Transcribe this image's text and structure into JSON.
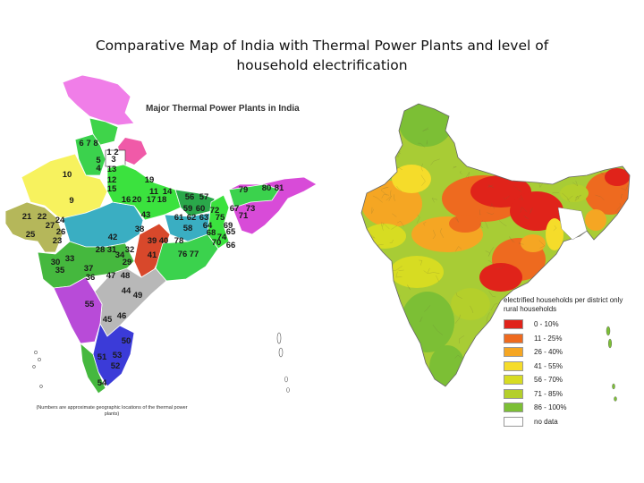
{
  "title_line1": "Comparative Map of India with Thermal Power Plants and level of",
  "title_line2": "household electrification",
  "left_map": {
    "heading": "Major Thermal Power Plants in India",
    "footnote": "(Numbers are approximate geographic locations of the thermal power plants)",
    "plant_labels": [
      "6",
      "7",
      "8",
      "1",
      "2",
      "3",
      "5",
      "4",
      "13",
      "12",
      "15",
      "19",
      "16",
      "20",
      "17",
      "18",
      "14",
      "11",
      "10",
      "9",
      "56",
      "57",
      "59",
      "60",
      "61",
      "62",
      "63",
      "64",
      "65",
      "66",
      "67",
      "68",
      "69",
      "70",
      "71",
      "72",
      "73",
      "74",
      "75",
      "76",
      "77",
      "78",
      "79",
      "80",
      "81",
      "21",
      "22",
      "23",
      "24",
      "25",
      "26",
      "27",
      "28",
      "29",
      "30",
      "31",
      "32",
      "33",
      "34",
      "35",
      "36",
      "37",
      "38",
      "39",
      "40",
      "41",
      "42",
      "43",
      "44",
      "45",
      "46",
      "47",
      "48",
      "49",
      "50",
      "51",
      "52",
      "53",
      "54",
      "55",
      "58"
    ]
  },
  "right_map": {
    "legend_title": "electrified households per district only rural households",
    "legend": [
      {
        "label": "0 - 10%",
        "color": "#e0231a"
      },
      {
        "label": "11 - 25%",
        "color": "#ee6a1f"
      },
      {
        "label": "26 - 40%",
        "color": "#f5a623"
      },
      {
        "label": "41 - 55%",
        "color": "#f5dc2a"
      },
      {
        "label": "56 - 70%",
        "color": "#d7dc22"
      },
      {
        "label": "71 - 85%",
        "color": "#b4cf2b"
      },
      {
        "label": "86 - 100%",
        "color": "#7cbf35"
      },
      {
        "label": "no data",
        "color": "#ffffff"
      }
    ]
  },
  "colors": {
    "jk": "#f07ee8",
    "himachal": "#3fd44a",
    "punjab": "#3bd24d",
    "rajasthan": "#f7f25e",
    "gujarat": "#b5b75a",
    "mp": "#3aaec2",
    "up": "#3be23e",
    "bihar": "#2aa84a",
    "jharkhand": "#3aaec2",
    "wb": "#3be23e",
    "maharashtra": "#45b83e",
    "chhattisgarh": "#d8482b",
    "orissa": "#3bd24d",
    "andhra": "#b8b8b8",
    "karnataka": "#b84bd8",
    "tamilnadu": "#3b3bd8",
    "kerala": "#45b83e",
    "northeast": "#d84bd8",
    "assam": "#3bd24d"
  }
}
